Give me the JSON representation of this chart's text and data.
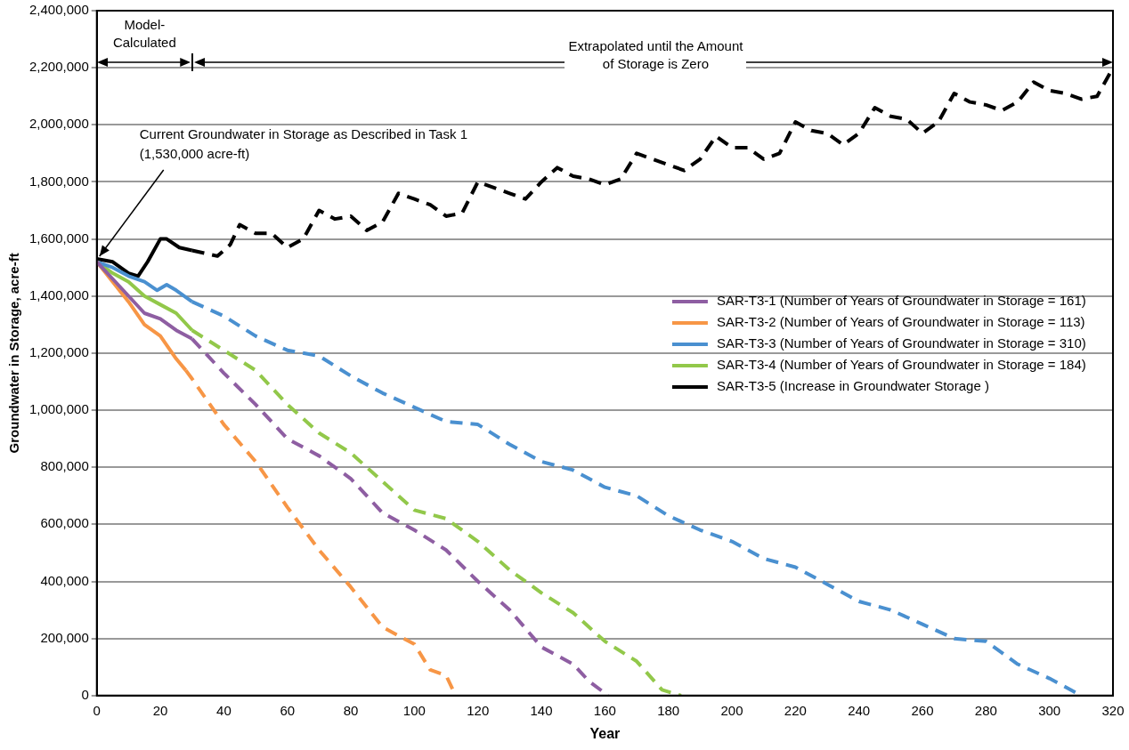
{
  "chart_data": {
    "type": "line",
    "xlabel": "Year",
    "ylabel": "Groundwater in Storage, acre-ft",
    "xlim": [
      0,
      320
    ],
    "xticks": [
      0,
      20,
      40,
      60,
      80,
      100,
      120,
      140,
      160,
      180,
      200,
      220,
      240,
      260,
      280,
      300,
      320
    ],
    "ylim": [
      0,
      2400000
    ],
    "yticks": [
      0,
      {
        "value": 200000,
        "label": "200,000"
      },
      {
        "value": 400000,
        "label": "400,000"
      },
      {
        "value": 600000,
        "label": "600,000"
      },
      {
        "value": 800000,
        "label": "800,000"
      },
      {
        "value": 1000000,
        "label": "1,000,000"
      },
      {
        "value": 1200000,
        "label": "1,200,000"
      },
      {
        "value": 1400000,
        "label": "1,400,000"
      },
      {
        "value": 1600000,
        "label": "1,600,000"
      },
      {
        "value": 1800000,
        "label": "1,800,000"
      },
      {
        "value": 2000000,
        "label": "2,000,000"
      },
      {
        "value": 2200000,
        "label": "2,200,000"
      },
      {
        "value": 2400000,
        "label": "2,400,000"
      }
    ],
    "grid": "y",
    "legend": "center right",
    "marker": "none",
    "annotations": [
      "Model-\nCalculated",
      "Extrapolated until the Amount\nof Storage is Zero",
      {
        "text": "Current Groundwater in Storage as Described in Task 1\n(1,530,000 acre-ft)",
        "x": 0,
        "y": 1530000
      }
    ],
    "series": [
      {
        "name": "SAR-T3-1 (Number of Years of Groundwater in Storage = 161)",
        "color": "#8e5ea2",
        "line_style": "solid",
        "x": [
          0,
          5,
          10,
          15,
          20,
          25,
          30
        ],
        "values": [
          1520000,
          1460000,
          1400000,
          1340000,
          1320000,
          1280000,
          1250000
        ]
      },
      {
        "name": "SAR-T3-2 (Number of Years of Groundwater in Storage = 113)",
        "color": "#f79646",
        "line_style": "solid",
        "x": [
          0,
          5,
          10,
          15,
          20,
          25,
          28
        ],
        "values": [
          1520000,
          1450000,
          1380000,
          1300000,
          1260000,
          1180000,
          1140000
        ]
      },
      {
        "name": "SAR-T3-3 (Number of Years of Groundwater in Storage = 310)",
        "color": "#4a90d0",
        "line_style": "solid",
        "x": [
          0,
          5,
          10,
          15,
          19,
          22,
          25,
          30
        ],
        "values": [
          1520000,
          1500000,
          1470000,
          1450000,
          1420000,
          1440000,
          1420000,
          1380000
        ]
      },
      {
        "name": "SAR-T3-4 (Number of Years of Groundwater in Storage = 184)",
        "color": "#92c84a",
        "line_style": "solid",
        "x": [
          0,
          5,
          10,
          15,
          20,
          25,
          30
        ],
        "values": [
          1520000,
          1480000,
          1450000,
          1400000,
          1370000,
          1340000,
          1280000
        ]
      },
      {
        "name": "SAR-T3-5 (Increase in Groundwater Storage )",
        "color": "#000000",
        "line_style": "solid",
        "x": [
          0,
          5,
          10,
          13,
          16,
          20,
          22,
          26,
          30
        ],
        "values": [
          1530000,
          1520000,
          1480000,
          1470000,
          1520000,
          1600000,
          1600000,
          1570000,
          1560000
        ]
      },
      {
        "color": "#8e5ea2",
        "line_style": "dashed",
        "x": [
          30,
          40,
          50,
          60,
          70,
          80,
          90,
          100,
          110,
          120,
          130,
          140,
          150,
          155,
          161
        ],
        "values": [
          1250000,
          1130000,
          1020000,
          900000,
          840000,
          760000,
          640000,
          580000,
          510000,
          400000,
          300000,
          170000,
          110000,
          50000,
          0
        ]
      },
      {
        "color": "#f79646",
        "line_style": "dashed",
        "x": [
          28,
          30,
          40,
          50,
          60,
          70,
          80,
          90,
          100,
          105,
          110,
          113
        ],
        "values": [
          1140000,
          1110000,
          950000,
          820000,
          660000,
          510000,
          380000,
          240000,
          180000,
          90000,
          70000,
          0
        ]
      },
      {
        "color": "#4a90d0",
        "line_style": "dashed",
        "x": [
          30,
          40,
          50,
          60,
          70,
          80,
          90,
          100,
          110,
          120,
          130,
          140,
          150,
          160,
          170,
          180,
          190,
          200,
          210,
          220,
          230,
          240,
          250,
          260,
          270,
          280,
          290,
          300,
          310
        ],
        "values": [
          1380000,
          1330000,
          1260000,
          1210000,
          1190000,
          1120000,
          1060000,
          1010000,
          960000,
          950000,
          880000,
          820000,
          790000,
          730000,
          700000,
          630000,
          580000,
          540000,
          480000,
          450000,
          390000,
          330000,
          300000,
          250000,
          200000,
          190000,
          110000,
          60000,
          0
        ]
      },
      {
        "color": "#92c84a",
        "line_style": "dashed",
        "x": [
          30,
          40,
          50,
          60,
          70,
          80,
          90,
          100,
          110,
          120,
          130,
          140,
          150,
          160,
          170,
          178,
          184
        ],
        "values": [
          1280000,
          1210000,
          1140000,
          1020000,
          920000,
          850000,
          750000,
          650000,
          620000,
          540000,
          440000,
          360000,
          290000,
          190000,
          120000,
          20000,
          0
        ]
      },
      {
        "color": "#000000",
        "line_style": "dashed",
        "x": [
          30,
          38,
          42,
          45,
          50,
          55,
          60,
          65,
          70,
          75,
          80,
          85,
          90,
          95,
          100,
          105,
          110,
          115,
          120,
          125,
          130,
          135,
          140,
          145,
          150,
          155,
          160,
          165,
          170,
          175,
          180,
          185,
          190,
          195,
          200,
          205,
          210,
          215,
          220,
          225,
          230,
          235,
          240,
          245,
          250,
          255,
          260,
          265,
          270,
          275,
          280,
          285,
          290,
          295,
          300,
          305,
          310,
          315,
          320
        ],
        "values": [
          1560000,
          1540000,
          1580000,
          1650000,
          1620000,
          1620000,
          1570000,
          1600000,
          1700000,
          1670000,
          1680000,
          1630000,
          1660000,
          1760000,
          1740000,
          1720000,
          1680000,
          1690000,
          1800000,
          1780000,
          1760000,
          1740000,
          1800000,
          1850000,
          1820000,
          1810000,
          1790000,
          1810000,
          1900000,
          1880000,
          1860000,
          1840000,
          1880000,
          1960000,
          1920000,
          1920000,
          1880000,
          1900000,
          2010000,
          1980000,
          1970000,
          1930000,
          1970000,
          2060000,
          2030000,
          2020000,
          1970000,
          2010000,
          2110000,
          2080000,
          2070000,
          2050000,
          2080000,
          2150000,
          2120000,
          2110000,
          2090000,
          2100000,
          2200000
        ]
      }
    ]
  }
}
